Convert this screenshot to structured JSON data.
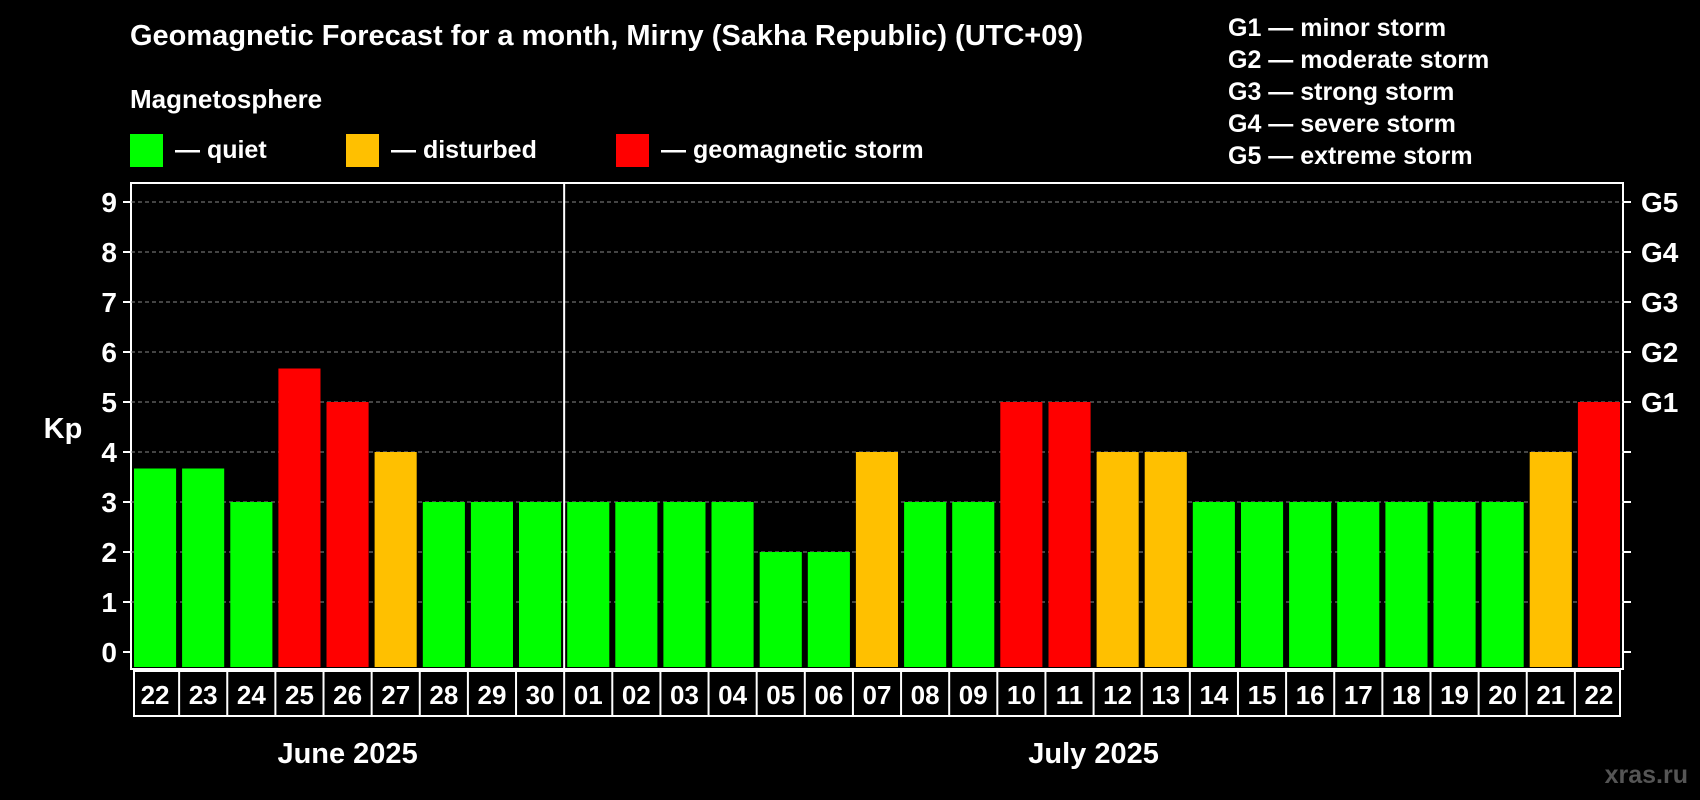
{
  "chart_data": {
    "type": "bar",
    "title": "Geomagnetic Forecast for a month, Mirny (Sakha Republic) (UTC+09)",
    "ylabel": "Kp",
    "ylim": [
      0,
      9
    ],
    "yticks": [
      "0",
      "1",
      "2",
      "3",
      "4",
      "5",
      "6",
      "7",
      "8",
      "9"
    ],
    "right_ticks": [
      {
        "value": 5,
        "label": "G1"
      },
      {
        "value": 6,
        "label": "G2"
      },
      {
        "value": 7,
        "label": "G3"
      },
      {
        "value": 8,
        "label": "G4"
      },
      {
        "value": 9,
        "label": "G5"
      }
    ],
    "categories": [
      "22",
      "23",
      "24",
      "25",
      "26",
      "27",
      "28",
      "29",
      "30",
      "01",
      "02",
      "03",
      "04",
      "05",
      "06",
      "07",
      "08",
      "09",
      "10",
      "11",
      "12",
      "13",
      "14",
      "15",
      "16",
      "17",
      "18",
      "19",
      "20",
      "21",
      "22"
    ],
    "values": [
      3.67,
      3.67,
      3,
      5.67,
      5,
      4,
      3,
      3,
      3,
      3,
      3,
      3,
      3,
      2,
      2,
      4,
      3,
      3,
      5,
      5,
      4,
      4,
      3,
      3,
      3,
      3,
      3,
      3,
      3,
      4,
      5
    ],
    "levels": [
      "quiet",
      "quiet",
      "quiet",
      "storm",
      "storm",
      "disturbed",
      "quiet",
      "quiet",
      "quiet",
      "quiet",
      "quiet",
      "quiet",
      "quiet",
      "quiet",
      "quiet",
      "disturbed",
      "quiet",
      "quiet",
      "storm",
      "storm",
      "disturbed",
      "disturbed",
      "quiet",
      "quiet",
      "quiet",
      "quiet",
      "quiet",
      "quiet",
      "quiet",
      "disturbed",
      "storm"
    ],
    "months": [
      {
        "label": "June 2025",
        "start": 0,
        "count": 9
      },
      {
        "label": "July 2025",
        "start": 9,
        "count": 22
      }
    ],
    "grid": true
  },
  "legend": {
    "heading": "Magnetosphere",
    "items": [
      {
        "key": "quiet",
        "label": "— quiet",
        "color": "#00ff00"
      },
      {
        "key": "disturbed",
        "label": "— disturbed",
        "color": "#ffc000"
      },
      {
        "key": "storm",
        "label": "— geomagnetic storm",
        "color": "#ff0000"
      }
    ]
  },
  "storm_scale": [
    "G1 — minor storm",
    "G2 — moderate storm",
    "G3 — strong storm",
    "G4 — severe storm",
    "G5 — extreme storm"
  ],
  "watermark": "xras.ru"
}
